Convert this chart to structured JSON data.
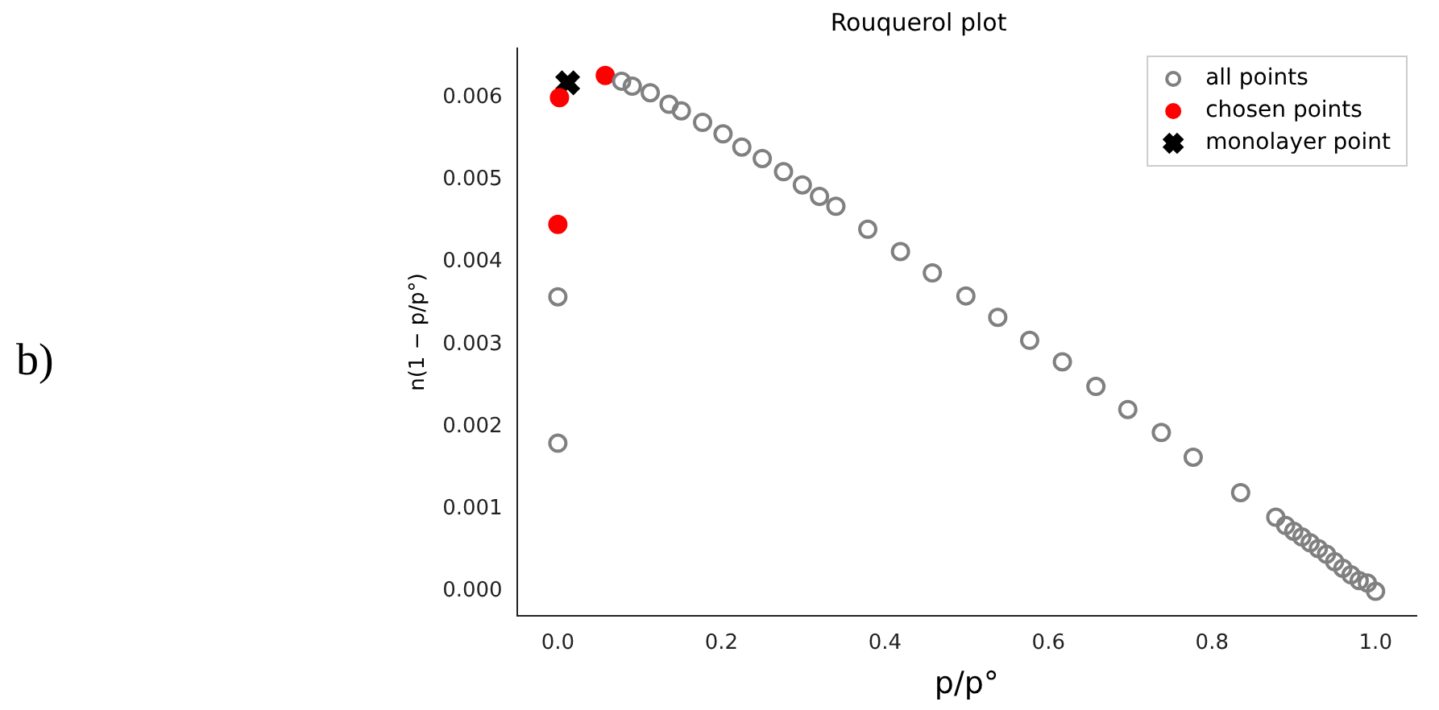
{
  "chart_data": {
    "type": "scatter",
    "title": "Rouquerol plot",
    "xlabel": "p/p°",
    "ylabel": "n(1 − p/p°)",
    "annotations": [
      "b)"
    ],
    "xlim": [
      -0.05,
      1.05
    ],
    "ylim": [
      -0.0003,
      0.0066
    ],
    "xticks": [
      {
        "value": 0,
        "label": "0.0"
      },
      {
        "value": 0.2,
        "label": "0.2"
      },
      {
        "value": 0.4,
        "label": "0.4"
      },
      {
        "value": 0.6,
        "label": "0.6"
      },
      {
        "value": 0.8,
        "label": "0.8"
      },
      {
        "value": 1,
        "label": "1.0"
      }
    ],
    "yticks": [
      {
        "value": 0,
        "label": "0.000"
      },
      {
        "value": 0.001,
        "label": "0.001"
      },
      {
        "value": 0.002,
        "label": "0.002"
      },
      {
        "value": 0.003,
        "label": "0.003"
      },
      {
        "value": 0.004,
        "label": "0.004"
      },
      {
        "value": 0.005,
        "label": "0.005"
      },
      {
        "value": 0.006,
        "label": "0.006"
      }
    ],
    "grid": false,
    "legend": "top right",
    "series": [
      {
        "name": "all points",
        "color": "#808080",
        "marker": "circle",
        "x": [
          0,
          0,
          0.078,
          0.091,
          0.113,
          0.136,
          0.151,
          0.177,
          0.202,
          0.225,
          0.25,
          0.276,
          0.299,
          0.32,
          0.34,
          0.379,
          0.419,
          0.458,
          0.499,
          0.538,
          0.577,
          0.617,
          0.658,
          0.697,
          0.738,
          0.777,
          0.835,
          0.878,
          0.89,
          0.9,
          0.91,
          0.92,
          0.93,
          0.94,
          0.95,
          0.96,
          0.97,
          0.98,
          0.99,
          1.0
        ],
        "values": [
          0.00358,
          0.0018,
          0.0062,
          0.00614,
          0.00606,
          0.00592,
          0.00584,
          0.0057,
          0.00556,
          0.0054,
          0.00526,
          0.0051,
          0.00494,
          0.0048,
          0.00468,
          0.0044,
          0.00413,
          0.00387,
          0.00359,
          0.00333,
          0.00305,
          0.00279,
          0.00249,
          0.00221,
          0.00193,
          0.00163,
          0.0012,
          0.0009,
          0.0008,
          0.00073,
          0.00066,
          0.00059,
          0.00052,
          0.00045,
          0.00036,
          0.00028,
          0.0002,
          0.00013,
          0.0001,
          0
        ]
      },
      {
        "name": "chosen points",
        "color": "#ff0000",
        "marker": "circle",
        "x": [
          0,
          0.002,
          0.058
        ],
        "values": [
          0.00446,
          0.006,
          0.00627
        ]
      },
      {
        "name": "monolayer point",
        "color": "#000000",
        "marker": "cross",
        "x": [
          0.012
        ],
        "values": [
          0.00618
        ]
      }
    ]
  }
}
